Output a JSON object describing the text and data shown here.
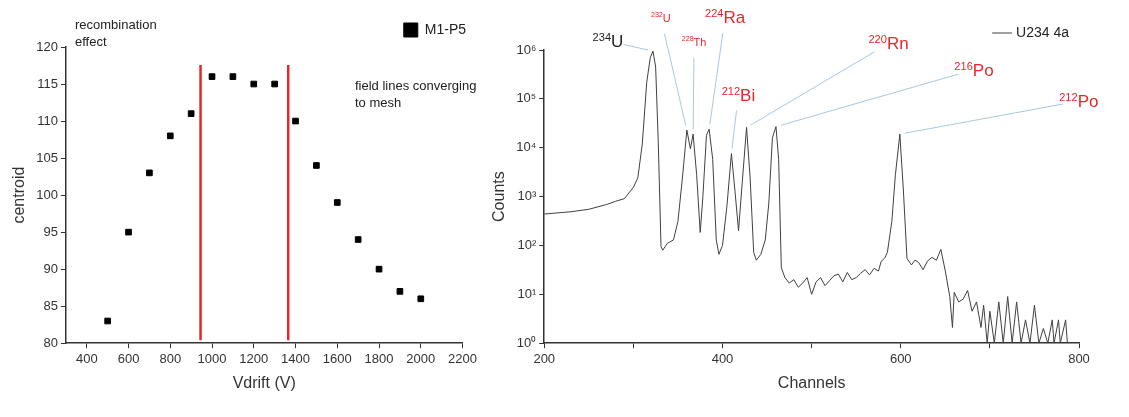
{
  "chart_data": [
    {
      "type": "scatter",
      "xlabel": "Vdrift (V)",
      "ylabel": "centroid",
      "x": [
        500,
        600,
        700,
        800,
        900,
        1000,
        1100,
        1200,
        1300,
        1400,
        1500,
        1600,
        1700,
        1800,
        1900,
        2000
      ],
      "series": [
        {
          "name": "M1-P5",
          "color": "#000000",
          "values": [
            83,
            95,
            103,
            108,
            111,
            116,
            116,
            115,
            115,
            110,
            104,
            99,
            94,
            90,
            87,
            86
          ]
        }
      ],
      "xlim": [
        300,
        2200
      ],
      "xticks": [
        400,
        600,
        800,
        1000,
        1200,
        1400,
        1600,
        1800,
        2000,
        2200
      ],
      "ylim": [
        80,
        120
      ],
      "yticks": [
        80,
        85,
        90,
        95,
        100,
        105,
        110,
        115,
        120
      ],
      "ref_lines": [
        {
          "axis": "x",
          "value": 945,
          "color": "#e8262a"
        },
        {
          "axis": "x",
          "value": 1365,
          "color": "#e8262a"
        }
      ],
      "annotations": [
        "recombination effect",
        "field lines converging to mesh"
      ],
      "legend": "top right",
      "marker": "square",
      "grid": false
    },
    {
      "type": "line",
      "xlabel": "Channels",
      "ylabel": "Counts",
      "log": "y",
      "series": [
        {
          "name": "U234 4a",
          "color": "#404040",
          "x": [
            200,
            230,
            250,
            270,
            280,
            290,
            300,
            305,
            310,
            315,
            319,
            322,
            325,
            328,
            331,
            333,
            338,
            345,
            350,
            355,
            360,
            364,
            367,
            371,
            375,
            378,
            382,
            385,
            389,
            393,
            396,
            400,
            405,
            410,
            414,
            418,
            422,
            427,
            431,
            435,
            438,
            443,
            448,
            452,
            456,
            460,
            463,
            466,
            470,
            475,
            480,
            485,
            490,
            495,
            500,
            505,
            510,
            515,
            520,
            525,
            530,
            535,
            540,
            545,
            550,
            555,
            560,
            565,
            570,
            575,
            578,
            582,
            585,
            590,
            594,
            599,
            603,
            607,
            612,
            616,
            620,
            625,
            630,
            635,
            640,
            645,
            650,
            655,
            658,
            660,
            665,
            670,
            675,
            680,
            685,
            690,
            693,
            697,
            700,
            705,
            710,
            715,
            720,
            725,
            730,
            735,
            740,
            745,
            750,
            755,
            760,
            765,
            770,
            772,
            777,
            779,
            785,
            787
          ],
          "values": [
            440,
            490,
            550,
            690,
            800,
            910,
            1550,
            2400,
            12000,
            220000,
            700000,
            950000,
            450000,
            12000,
            95,
            80,
            110,
            130,
            310,
            2400,
            23000,
            9500,
            19000,
            2800,
            185,
            1000,
            18000,
            24000,
            5800,
            130,
            66,
            100,
            650,
            7600,
            1300,
            200,
            1800,
            26000,
            2400,
            72,
            50,
            66,
            130,
            740,
            16000,
            27000,
            5800,
            35,
            22,
            17,
            20,
            14,
            17,
            22,
            10,
            18,
            22,
            15,
            19,
            24,
            26,
            18,
            28,
            20,
            22,
            27,
            32,
            25,
            34,
            30,
            47,
            55,
            72,
            310,
            2800,
            19000,
            1300,
            54,
            40,
            50,
            45,
            32,
            48,
            57,
            50,
            83,
            30,
            9,
            2.1,
            11,
            7,
            8,
            12,
            4.5,
            7,
            2.1,
            6,
            1,
            4.5,
            1,
            7,
            1,
            9,
            1,
            7,
            1,
            3,
            1,
            6,
            1,
            2,
            1,
            3,
            1,
            3,
            1,
            3,
            1
          ]
        }
      ],
      "xlim": [
        200,
        800
      ],
      "xticks": [
        200,
        {
          "value": 300,
          "label": null
        },
        400,
        {
          "value": 500,
          "label": null
        },
        600,
        {
          "value": 700,
          "label": null
        },
        800
      ],
      "ylim": [
        1,
        1000000
      ],
      "yticks": [
        {
          "value": 1,
          "label": "10⁰"
        },
        {
          "value": 10,
          "label": "10¹"
        },
        {
          "value": 100,
          "label": "10²"
        },
        {
          "value": 1000,
          "label": "10³"
        },
        {
          "value": 10000,
          "label": "10⁴"
        },
        {
          "value": 100000,
          "label": "10⁵"
        },
        {
          "value": 1000000,
          "label": "10⁶"
        }
      ],
      "annotations": [
        {
          "text": "$^{234}$U",
          "x": 322,
          "y": 950000
        },
        {
          "text": "$^{232}$U",
          "x": 360,
          "y": 23000
        },
        {
          "text": "$^{228}$Th",
          "x": 367,
          "y": 19000
        },
        {
          "text": "$^{224}$Ra",
          "x": 385,
          "y": 24000
        },
        {
          "text": "$^{212}$Bi",
          "x": 410,
          "y": 7600
        },
        {
          "text": "$^{220}$Rn",
          "x": 427,
          "y": 26000
        },
        {
          "text": "$^{216}$Po",
          "x": 460,
          "y": 27000
        },
        {
          "text": "$^{212}$Po",
          "x": 599,
          "y": 19000
        }
      ],
      "legend": "top right",
      "marker": "none",
      "grid": false
    }
  ]
}
